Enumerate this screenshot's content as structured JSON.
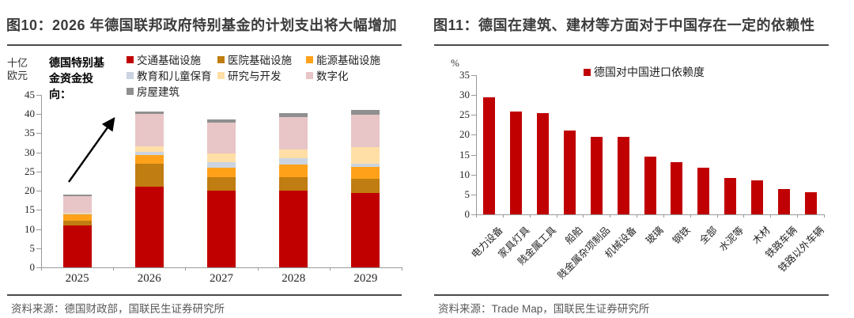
{
  "left_panel": {
    "title": "图10：2026 年德国联邦政府特别基金的计划支出将大幅增加",
    "legend_lead": "德国特别基金资金投向：",
    "source": "资料来源：德国财政部，国联民生证券研究所"
  },
  "right_panel": {
    "title": "图11：德国在建筑、建材等方面对于中国存在一定的依赖性",
    "source": "资料来源：Trade Map，国联民生证券研究所"
  },
  "chart_data": [
    {
      "type": "bar",
      "stacked": true,
      "title": "图10：2026 年德国联邦政府特别基金的计划支出将大幅增加",
      "unit": "十亿欧元",
      "categories": [
        "2025",
        "2026",
        "2027",
        "2028",
        "2029"
      ],
      "series": [
        {
          "name": "交通基础设施",
          "color": "#C00000",
          "values": [
            11.0,
            21.0,
            20.0,
            20.0,
            19.5
          ]
        },
        {
          "name": "医院基础设施",
          "color": "#C07D11",
          "values": [
            1.1,
            6.0,
            3.5,
            3.6,
            3.6
          ]
        },
        {
          "name": "能源基础设施",
          "color": "#FFA21A",
          "values": [
            1.9,
            2.3,
            2.6,
            3.3,
            3.1
          ]
        },
        {
          "name": "教育和儿童保育",
          "color": "#CBD4E0",
          "values": [
            0.1,
            0.8,
            1.4,
            1.6,
            0.9
          ]
        },
        {
          "name": "研究与开发",
          "color": "#FFDFA6",
          "values": [
            0.2,
            1.5,
            2.3,
            2.2,
            4.3
          ]
        },
        {
          "name": "数字化",
          "color": "#E8C5C6",
          "values": [
            4.3,
            8.5,
            8.0,
            8.5,
            8.5
          ]
        },
        {
          "name": "房屋建筑",
          "color": "#8F8F8F",
          "values": [
            0.3,
            0.5,
            0.9,
            1.1,
            1.2
          ]
        }
      ],
      "totals": [
        18.9,
        40.6,
        38.7,
        40.3,
        41.1
      ],
      "ylim": [
        0,
        45
      ],
      "ytick_step": 5,
      "annotation": "upward arrow from 2025 bar to 2026 bar",
      "legend_position": "top"
    },
    {
      "type": "bar",
      "title": "图11：德国在建筑、建材等方面对于中国存在一定的依赖性",
      "unit": "%",
      "legend": [
        "德国对中国进口依赖度"
      ],
      "bar_color": "#C00000",
      "categories": [
        "电力设备",
        "家具灯具",
        "贱金属工具",
        "船舶",
        "贱金属杂项制品",
        "机械设备",
        "玻璃",
        "钢铁",
        "全部",
        "水泥等",
        "木材",
        "铁路车辆",
        "铁路以外车辆"
      ],
      "values": [
        29.5,
        25.8,
        25.5,
        21.0,
        19.5,
        19.4,
        14.5,
        13.2,
        11.8,
        9.1,
        8.6,
        6.3,
        5.5
      ],
      "ylim": [
        0,
        35
      ],
      "ytick_step": 5,
      "legend_position": "top",
      "xlabel_rotation": -45
    }
  ]
}
